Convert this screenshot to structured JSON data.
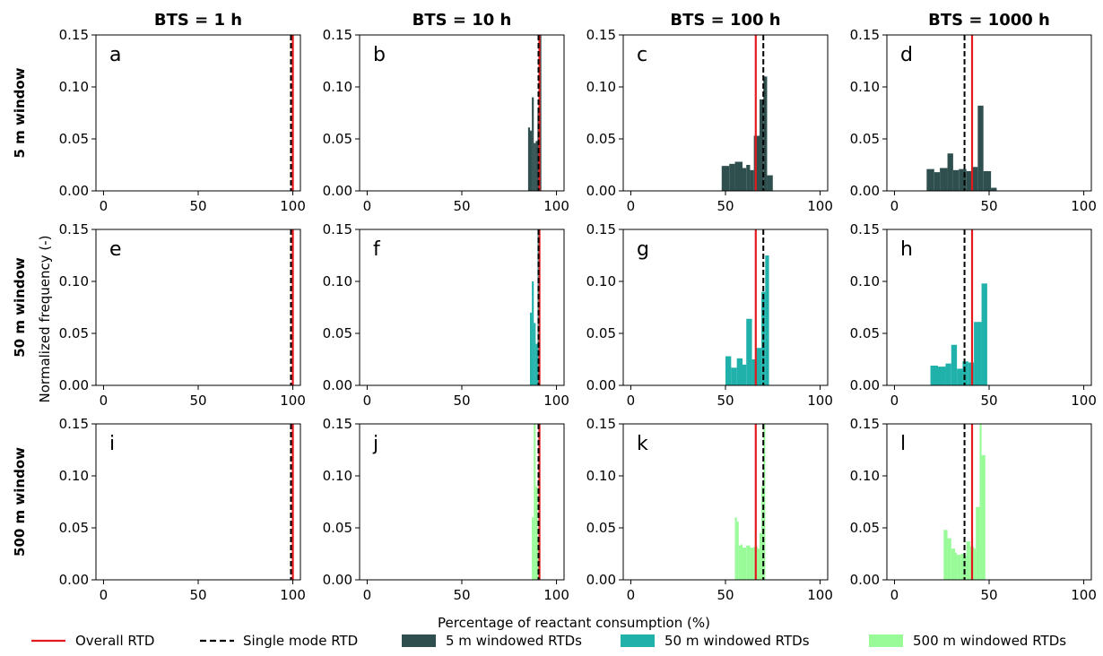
{
  "chart_data": {
    "type": "bar",
    "layout": "4 columns x 3 rows of histograms",
    "column_titles": [
      "BTS =  1 h",
      "BTS =  10 h",
      "BTS =  100 h",
      "BTS =  1000 h"
    ],
    "row_titles": [
      "5 m window",
      "50 m window",
      "500 m window"
    ],
    "xlabel": "Percentage of reactant consumption (%)",
    "ylabel": "Normalized frequency (-)",
    "xlim": [
      -4,
      104
    ],
    "ylim": [
      0,
      0.15
    ],
    "xticks": [
      "0",
      "50",
      "100"
    ],
    "yticks": [
      "0.00",
      "0.05",
      "0.10",
      "0.15"
    ],
    "grid": false,
    "legend_position": "bottom",
    "legend": [
      {
        "label": "Overall RTD",
        "kind": "line",
        "style": "solid",
        "color": "#e41a1c"
      },
      {
        "label": "Single mode RTD",
        "kind": "line",
        "style": "dashed",
        "color": "#000000"
      },
      {
        "label": "5 m windowed RTDs",
        "kind": "patch",
        "color": "#2f4f4f"
      },
      {
        "label": "50 m windowed RTDs",
        "kind": "patch",
        "color": "#20b2aa"
      },
      {
        "label": "500 m windowed RTDs",
        "kind": "patch",
        "color": "#98fb98"
      }
    ],
    "panels": [
      {
        "id": "a",
        "row": 0,
        "col": 0,
        "overall_rtd": 100,
        "single_mode_rtd": 99,
        "series_color": "#2f4f4f",
        "bins": []
      },
      {
        "id": "b",
        "row": 0,
        "col": 1,
        "overall_rtd": 91,
        "single_mode_rtd": 90.5,
        "series_color": "#2f4f4f",
        "bins": [
          {
            "x0": 85,
            "x1": 86,
            "y": 0.061
          },
          {
            "x0": 86,
            "x1": 87,
            "y": 0.058
          },
          {
            "x0": 87,
            "x1": 88,
            "y": 0.09
          },
          {
            "x0": 88,
            "x1": 89,
            "y": 0.046
          },
          {
            "x0": 89,
            "x1": 90,
            "y": 0.048
          },
          {
            "x0": 90,
            "x1": 91,
            "y": 0.075
          },
          {
            "x0": 91,
            "x1": 92,
            "y": 0.15
          }
        ]
      },
      {
        "id": "c",
        "row": 0,
        "col": 2,
        "overall_rtd": 66,
        "single_mode_rtd": 70,
        "series_color": "#2f4f4f",
        "bins": [
          {
            "x0": 48,
            "x1": 52,
            "y": 0.024
          },
          {
            "x0": 52,
            "x1": 55,
            "y": 0.026
          },
          {
            "x0": 55,
            "x1": 59,
            "y": 0.028
          },
          {
            "x0": 59,
            "x1": 61,
            "y": 0.022
          },
          {
            "x0": 61,
            "x1": 63,
            "y": 0.025
          },
          {
            "x0": 63,
            "x1": 65,
            "y": 0.02
          },
          {
            "x0": 65,
            "x1": 68,
            "y": 0.053
          },
          {
            "x0": 68,
            "x1": 70,
            "y": 0.088
          },
          {
            "x0": 70,
            "x1": 72,
            "y": 0.11
          },
          {
            "x0": 72,
            "x1": 75,
            "y": 0.015
          }
        ]
      },
      {
        "id": "d",
        "row": 0,
        "col": 3,
        "overall_rtd": 41,
        "single_mode_rtd": 37,
        "series_color": "#2f4f4f",
        "bins": [
          {
            "x0": 17,
            "x1": 21,
            "y": 0.021
          },
          {
            "x0": 21,
            "x1": 24,
            "y": 0.018
          },
          {
            "x0": 24,
            "x1": 28,
            "y": 0.022
          },
          {
            "x0": 28,
            "x1": 31,
            "y": 0.036
          },
          {
            "x0": 31,
            "x1": 34,
            "y": 0.02
          },
          {
            "x0": 34,
            "x1": 38,
            "y": 0.021
          },
          {
            "x0": 38,
            "x1": 41,
            "y": 0.019
          },
          {
            "x0": 41,
            "x1": 44,
            "y": 0.023
          },
          {
            "x0": 44,
            "x1": 47,
            "y": 0.082
          },
          {
            "x0": 47,
            "x1": 51,
            "y": 0.019
          },
          {
            "x0": 51,
            "x1": 54,
            "y": 0.003
          }
        ]
      },
      {
        "id": "e",
        "row": 1,
        "col": 0,
        "overall_rtd": 100,
        "single_mode_rtd": 99,
        "series_color": "#20b2aa",
        "bins": []
      },
      {
        "id": "f",
        "row": 1,
        "col": 1,
        "overall_rtd": 91,
        "single_mode_rtd": 90.5,
        "series_color": "#20b2aa",
        "bins": [
          {
            "x0": 86,
            "x1": 87,
            "y": 0.07
          },
          {
            "x0": 87,
            "x1": 88,
            "y": 0.1
          },
          {
            "x0": 88,
            "x1": 89,
            "y": 0.06
          },
          {
            "x0": 89,
            "x1": 90,
            "y": 0.04
          },
          {
            "x0": 90,
            "x1": 91,
            "y": 0.15
          }
        ]
      },
      {
        "id": "g",
        "row": 1,
        "col": 2,
        "overall_rtd": 66,
        "single_mode_rtd": 70,
        "series_color": "#20b2aa",
        "bins": [
          {
            "x0": 50,
            "x1": 53,
            "y": 0.028
          },
          {
            "x0": 53,
            "x1": 56,
            "y": 0.017
          },
          {
            "x0": 56,
            "x1": 59,
            "y": 0.026
          },
          {
            "x0": 59,
            "x1": 61,
            "y": 0.02
          },
          {
            "x0": 61,
            "x1": 64,
            "y": 0.064
          },
          {
            "x0": 64,
            "x1": 66,
            "y": 0.025
          },
          {
            "x0": 66,
            "x1": 69,
            "y": 0.036
          },
          {
            "x0": 69,
            "x1": 71,
            "y": 0.09
          },
          {
            "x0": 71,
            "x1": 73,
            "y": 0.125
          }
        ]
      },
      {
        "id": "h",
        "row": 1,
        "col": 3,
        "overall_rtd": 41,
        "single_mode_rtd": 37,
        "series_color": "#20b2aa",
        "bins": [
          {
            "x0": 19,
            "x1": 23,
            "y": 0.019
          },
          {
            "x0": 23,
            "x1": 27,
            "y": 0.018
          },
          {
            "x0": 27,
            "x1": 30,
            "y": 0.021
          },
          {
            "x0": 30,
            "x1": 33,
            "y": 0.039
          },
          {
            "x0": 33,
            "x1": 36,
            "y": 0.016
          },
          {
            "x0": 36,
            "x1": 39,
            "y": 0.023
          },
          {
            "x0": 39,
            "x1": 42,
            "y": 0.022
          },
          {
            "x0": 42,
            "x1": 46,
            "y": 0.061
          },
          {
            "x0": 46,
            "x1": 49,
            "y": 0.098
          }
        ]
      },
      {
        "id": "i",
        "row": 2,
        "col": 0,
        "overall_rtd": 100,
        "single_mode_rtd": 99,
        "series_color": "#98fb98",
        "bins": []
      },
      {
        "id": "j",
        "row": 2,
        "col": 1,
        "overall_rtd": 91,
        "single_mode_rtd": 90.5,
        "series_color": "#98fb98",
        "bins": [
          {
            "x0": 87,
            "x1": 88,
            "y": 0.06
          },
          {
            "x0": 88,
            "x1": 89,
            "y": 0.15
          },
          {
            "x0": 89,
            "x1": 90,
            "y": 0.09
          },
          {
            "x0": 90,
            "x1": 91,
            "y": 0.04
          }
        ]
      },
      {
        "id": "k",
        "row": 2,
        "col": 2,
        "overall_rtd": 66,
        "single_mode_rtd": 70,
        "series_color": "#98fb98",
        "bins": [
          {
            "x0": 55,
            "x1": 56,
            "y": 0.06
          },
          {
            "x0": 56,
            "x1": 57,
            "y": 0.056
          },
          {
            "x0": 57,
            "x1": 58,
            "y": 0.033
          },
          {
            "x0": 58,
            "x1": 59,
            "y": 0.034
          },
          {
            "x0": 59,
            "x1": 61,
            "y": 0.031
          },
          {
            "x0": 61,
            "x1": 63,
            "y": 0.033
          },
          {
            "x0": 63,
            "x1": 65,
            "y": 0.031
          },
          {
            "x0": 65,
            "x1": 67,
            "y": 0.032
          },
          {
            "x0": 67,
            "x1": 68,
            "y": 0.03
          },
          {
            "x0": 68,
            "x1": 69,
            "y": 0.045
          },
          {
            "x0": 69,
            "x1": 70,
            "y": 0.09
          },
          {
            "x0": 70,
            "x1": 71,
            "y": 0.15
          }
        ]
      },
      {
        "id": "l",
        "row": 2,
        "col": 3,
        "overall_rtd": 41,
        "single_mode_rtd": 37,
        "series_color": "#98fb98",
        "bins": [
          {
            "x0": 26,
            "x1": 28,
            "y": 0.048
          },
          {
            "x0": 28,
            "x1": 30,
            "y": 0.04
          },
          {
            "x0": 30,
            "x1": 32,
            "y": 0.03
          },
          {
            "x0": 32,
            "x1": 33,
            "y": 0.026
          },
          {
            "x0": 33,
            "x1": 35,
            "y": 0.024
          },
          {
            "x0": 35,
            "x1": 37,
            "y": 0.025
          },
          {
            "x0": 37,
            "x1": 38,
            "y": 0.023
          },
          {
            "x0": 38,
            "x1": 40,
            "y": 0.037
          },
          {
            "x0": 40,
            "x1": 42,
            "y": 0.032
          },
          {
            "x0": 42,
            "x1": 43,
            "y": 0.03
          },
          {
            "x0": 43,
            "x1": 45,
            "y": 0.07
          },
          {
            "x0": 45,
            "x1": 46,
            "y": 0.15
          },
          {
            "x0": 46,
            "x1": 48,
            "y": 0.12
          }
        ]
      }
    ]
  }
}
